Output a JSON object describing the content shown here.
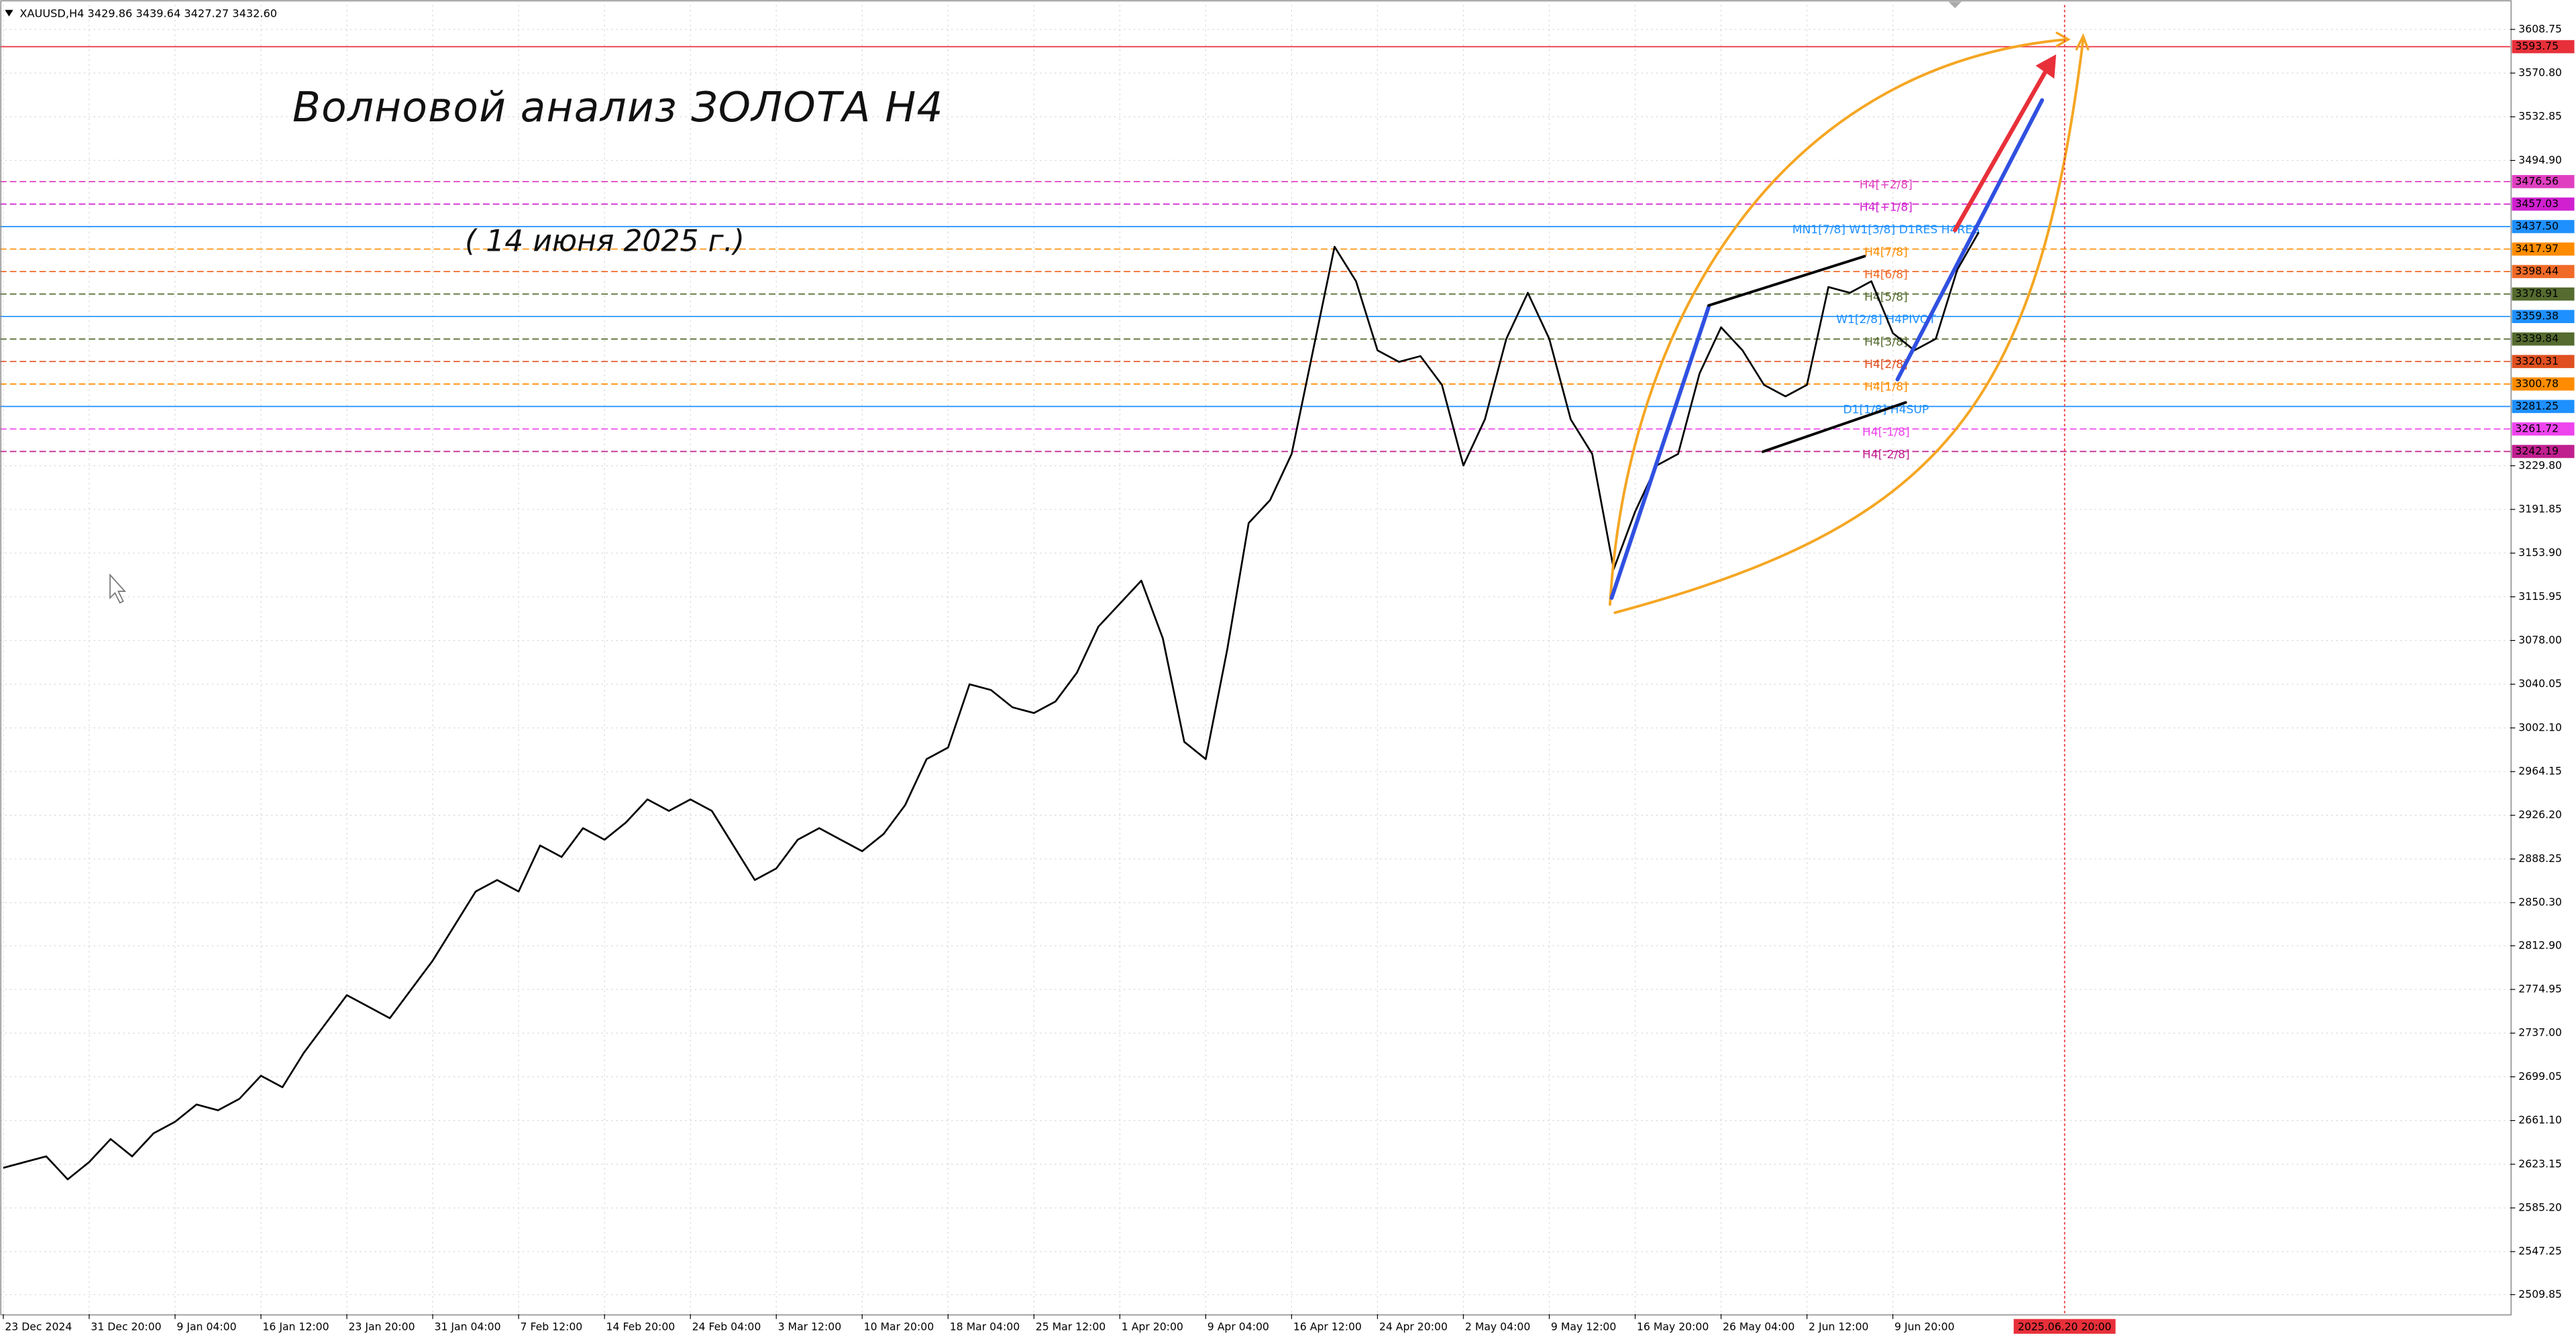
{
  "chart_data": {
    "type": "line",
    "header": "XAUUSD,H4 3429.86 3439.64 3427.27 3432.60",
    "title": "Волновой анализ ЗОЛОТА H4",
    "subtitle": "( 14 июня 2025 г.)",
    "categories": [
      "23 Dec 2024",
      null,
      null,
      null,
      "31 Dec 20:00",
      null,
      null,
      null,
      "9 Jan 04:00",
      null,
      null,
      null,
      "16 Jan 12:00",
      null,
      null,
      null,
      "23 Jan 20:00",
      null,
      null,
      null,
      "31 Jan 04:00",
      null,
      null,
      null,
      "7 Feb 12:00",
      null,
      null,
      null,
      "14 Feb 20:00",
      null,
      null,
      null,
      "24 Feb 04:00",
      null,
      null,
      null,
      "3 Mar 12:00",
      null,
      null,
      null,
      "10 Mar 20:00",
      null,
      null,
      null,
      "18 Mar 04:00",
      null,
      null,
      null,
      "25 Mar 12:00",
      null,
      null,
      null,
      "1 Apr 20:00",
      null,
      null,
      null,
      "9 Apr 04:00",
      null,
      null,
      null,
      "16 Apr 12:00",
      null,
      null,
      null,
      "24 Apr 20:00",
      null,
      null,
      null,
      "2 May 04:00",
      null,
      null,
      null,
      "9 May 12:00",
      null,
      null,
      null,
      "16 May 20:00",
      null,
      null,
      null,
      "26 May 04:00",
      null,
      null,
      null,
      "2 Jun 12:00",
      null,
      null,
      null,
      "9 Jun 20:00",
      null,
      null,
      null,
      null,
      null,
      null,
      null,
      "2025.06.20 20:00"
    ],
    "series": [
      {
        "name": "XAUUSD,H4",
        "color": "#000000",
        "values": [
          2620,
          2625,
          2630,
          2610,
          2625,
          2645,
          2630,
          2650,
          2660,
          2675,
          2670,
          2680,
          2700,
          2690,
          2720,
          2745,
          2770,
          2760,
          2750,
          2775,
          2800,
          2830,
          2860,
          2870,
          2860,
          2900,
          2890,
          2915,
          2905,
          2920,
          2940,
          2930,
          2940,
          2930,
          2900,
          2870,
          2880,
          2905,
          2915,
          2905,
          2895,
          2910,
          2935,
          2975,
          2985,
          3040,
          3035,
          3020,
          3015,
          3025,
          3050,
          3090,
          3110,
          3130,
          3080,
          2990,
          2975,
          3070,
          3180,
          3200,
          3240,
          3330,
          3420,
          3390,
          3330,
          3320,
          3325,
          3300,
          3230,
          3270,
          3340,
          3380,
          3340,
          3270,
          3240,
          3140,
          3190,
          3230,
          3240,
          3310,
          3350,
          3330,
          3300,
          3290,
          3300,
          3385,
          3380,
          3390,
          3345,
          3330,
          3340,
          3400,
          3432.6,
          null,
          null,
          null,
          null
        ]
      }
    ],
    "ylim": [
      2493,
      3630
    ],
    "yticks": [
      3608.75,
      {
        "value": 3570.8,
        "label": "3570.80"
      },
      3532.85,
      {
        "value": 3494.9,
        "label": "3494.90"
      },
      {
        "value": 3229.8,
        "label": "3229.80"
      },
      3191.85,
      {
        "value": 3153.9,
        "label": "3153.90"
      },
      3115.95,
      {
        "value": 3078,
        "label": "3078.00"
      },
      3040.05,
      {
        "value": 3002.1,
        "label": "3002.10"
      },
      2964.15,
      {
        "value": 2926.2,
        "label": "2926.20"
      },
      2888.25,
      {
        "value": 2850.3,
        "label": "2850.30"
      },
      {
        "value": 2812.9,
        "label": "2812.90"
      },
      2774.95,
      {
        "value": 2737,
        "label": "2737.00"
      },
      2699.05,
      {
        "value": 2661.1,
        "label": "2661.10"
      },
      2623.15,
      {
        "value": 2585.2,
        "label": "2585.20"
      },
      2547.25,
      2509.85
    ],
    "grid": true,
    "levels": [
      {
        "value": 3593.75,
        "label": "3593.75",
        "color": "#e8303a",
        "dashed": false
      },
      {
        "value": 3476.56,
        "label": "3476.56",
        "color": "#e040c0",
        "dashed": true,
        "note": "H4[+2/8]"
      },
      {
        "value": 3457.03,
        "label": "3457.03",
        "color": "#d020d0",
        "dashed": true,
        "note": "H4[+1/8]"
      },
      {
        "value": 3437.5,
        "label": "3437.50",
        "color": "#1e90ff",
        "dashed": false,
        "note": "MN1[7/8] W1[3/8] D1RES H4RES"
      },
      {
        "value": 3417.97,
        "label": "3417.97",
        "color": "#ff8c00",
        "dashed": true,
        "note": "H4[7/8]"
      },
      {
        "value": 3398.44,
        "label": "3398.44",
        "color": "#f06a28",
        "dashed": true,
        "note": "H4[6/8]"
      },
      {
        "value": 3378.91,
        "label": "3378.91",
        "color": "#556b2f",
        "dashed": true,
        "note": "H4[5/8]"
      },
      {
        "value": 3359.38,
        "label": "3359.38",
        "color": "#1e90ff",
        "dashed": false,
        "note": "W1[2/8] H4PIVOT"
      },
      {
        "value": 3339.84,
        "label": "3339.84",
        "color": "#556b2f",
        "dashed": true,
        "note": "H4[3/8]"
      },
      {
        "value": 3320.31,
        "label": "3320.31",
        "color": "#e05020",
        "dashed": true,
        "note": "H4[2/8]"
      },
      {
        "value": 3300.78,
        "label": "3300.78",
        "color": "#ff8c00",
        "dashed": true,
        "note": "H4[1/8]"
      },
      {
        "value": 3281.25,
        "label": "3281.25",
        "color": "#1e90ff",
        "dashed": false,
        "note": "D1[1/8] H4SUP"
      },
      {
        "value": 3261.72,
        "label": "3261.72",
        "color": "#ee44ee",
        "dashed": true,
        "note": "H4[-1/8]"
      },
      {
        "value": 3242.19,
        "label": "3242.19",
        "color": "#c0208f",
        "dashed": true,
        "note": "H4[-2/8]"
      }
    ]
  }
}
